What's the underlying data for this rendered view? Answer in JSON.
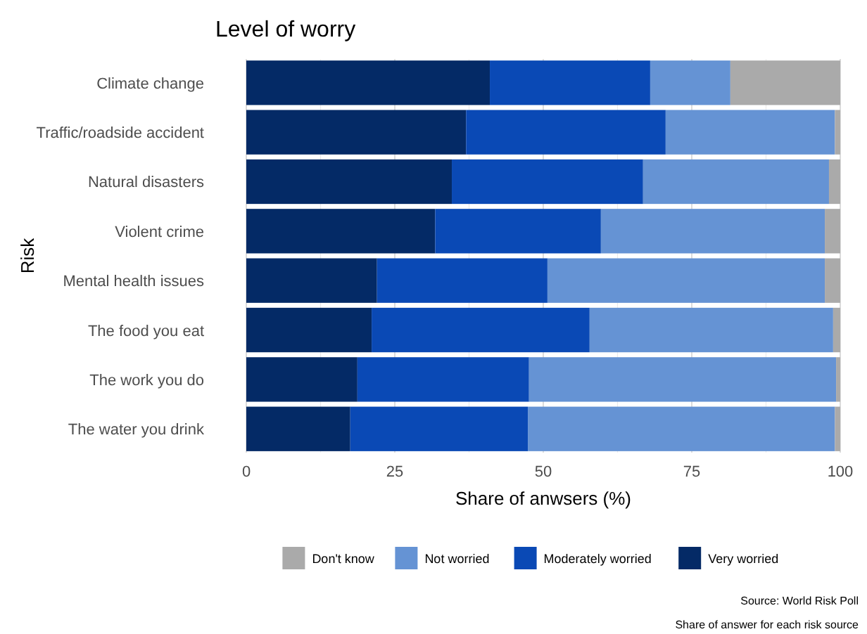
{
  "chart_data": {
    "type": "bar",
    "title": "Level of worry",
    "xlabel": "Share of anwsers (%)",
    "ylabel": "Risk",
    "orientation": "horizontal",
    "stacked": true,
    "categories": [
      "Climate change",
      "Traffic/roadside accident",
      "Natural disasters",
      "Violent crime",
      "Mental health issues",
      "The food you eat",
      "The work you do",
      "The water you drink"
    ],
    "series": [
      {
        "name": "Very worried",
        "color": "#042a66",
        "values": [
          41.0,
          37.0,
          34.6,
          31.8,
          22.0,
          21.1,
          18.7,
          17.5
        ]
      },
      {
        "name": "Moderately worried",
        "color": "#0a49b5",
        "values": [
          27.0,
          33.6,
          32.2,
          27.9,
          28.7,
          36.7,
          28.9,
          29.9
        ]
      },
      {
        "name": "Not worried",
        "color": "#6593d4",
        "values": [
          13.5,
          28.5,
          31.3,
          37.7,
          46.7,
          41.0,
          51.7,
          51.7
        ]
      },
      {
        "name": "Don't know",
        "color": "#aaaaaa",
        "values": [
          18.5,
          0.9,
          1.9,
          2.6,
          2.6,
          1.2,
          0.7,
          0.9
        ]
      }
    ],
    "xlim": [
      0,
      100
    ],
    "xticks": [
      0,
      25,
      50,
      75,
      100
    ],
    "grid": "x",
    "legend": "bottom",
    "annotations": [
      "Source: World Risk Poll",
      "Share of answer for each risk source"
    ]
  }
}
